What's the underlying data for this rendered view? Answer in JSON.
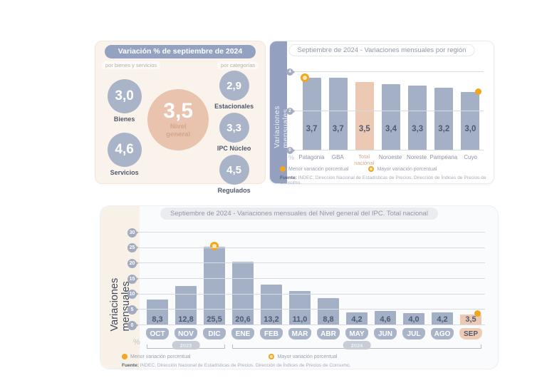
{
  "panel_summary": {
    "title": "Variación % de septiembre de 2024",
    "group_left_label": "por bienes y servicios",
    "group_right_label": "por categorías",
    "center_value": "3,5",
    "center_label": "Nivel general",
    "left_items": [
      {
        "value": "3,0",
        "label": "Bienes"
      },
      {
        "value": "4,6",
        "label": "Servicios"
      }
    ],
    "right_items": [
      {
        "value": "2,9",
        "label": "Estacionales"
      },
      {
        "value": "3,3",
        "label": "IPC Núcleo"
      },
      {
        "value": "4,5",
        "label": "Regulados"
      }
    ]
  },
  "legend": {
    "min_label": "Menor variación porcentual",
    "max_label": "Mayor variación porcentual"
  },
  "source": {
    "prefix": "Fuente:",
    "text": " INDEC, Dirección Nacional de Estadísticas de Precios. Dirección de Índices de Precios de Consumo."
  },
  "colors": {
    "bar_blue": "#a4b0c5",
    "accent_pink": "#ecc9b2",
    "marker_orange": "#f2a51e",
    "header_blue": "#94a1c0",
    "cream_background": "#faf3eb"
  },
  "chart_data": [
    {
      "type": "bar",
      "title": "Septiembre de 2024 - Variaciones mensuales por región",
      "ylabel": "Variaciones mensuales",
      "unit": "%",
      "ylim": [
        0,
        4
      ],
      "yticks": [
        0,
        2,
        4
      ],
      "grid": true,
      "categories": [
        "Patagonia",
        "GBA",
        "Total nacional",
        "Noroeste",
        "Noreste",
        "Pampeana",
        "Cuyo"
      ],
      "values": [
        3.7,
        3.7,
        3.5,
        3.4,
        3.3,
        3.2,
        3.0
      ],
      "value_labels": [
        "3,7",
        "3,7",
        "3,5",
        "3,4",
        "3,3",
        "3,2",
        "3,0"
      ],
      "highlight_index": 2,
      "max_marker_index": 0,
      "min_marker_index": 6
    },
    {
      "type": "bar",
      "title": "Septiembre de 2024 - Variaciones mensuales del Nivel general del IPC. Total nacional",
      "ylabel": "Variaciones mensuales",
      "unit": "%",
      "ylim": [
        0,
        30
      ],
      "yticks": [
        0,
        5,
        10,
        15,
        20,
        25,
        30
      ],
      "grid": true,
      "categories": [
        "OCT",
        "NOV",
        "DIC",
        "ENE",
        "FEB",
        "MAR",
        "ABR",
        "MAY",
        "JUN",
        "JUL",
        "AGO",
        "SEP"
      ],
      "values": [
        8.3,
        12.8,
        25.5,
        20.6,
        13.2,
        11.0,
        8.8,
        4.2,
        4.6,
        4.0,
        4.2,
        3.5
      ],
      "value_labels": [
        "8,3",
        "12,8",
        "25,5",
        "20,6",
        "13,2",
        "11,0",
        "8,8",
        "4,2",
        "4,6",
        "4,0",
        "4,2",
        "3,5"
      ],
      "highlight_index": 11,
      "max_marker_index": 2,
      "min_marker_index": 11,
      "year_groups": [
        {
          "label": "2023",
          "from": 0,
          "to": 2
        },
        {
          "label": "2024",
          "from": 3,
          "to": 11
        }
      ]
    }
  ]
}
